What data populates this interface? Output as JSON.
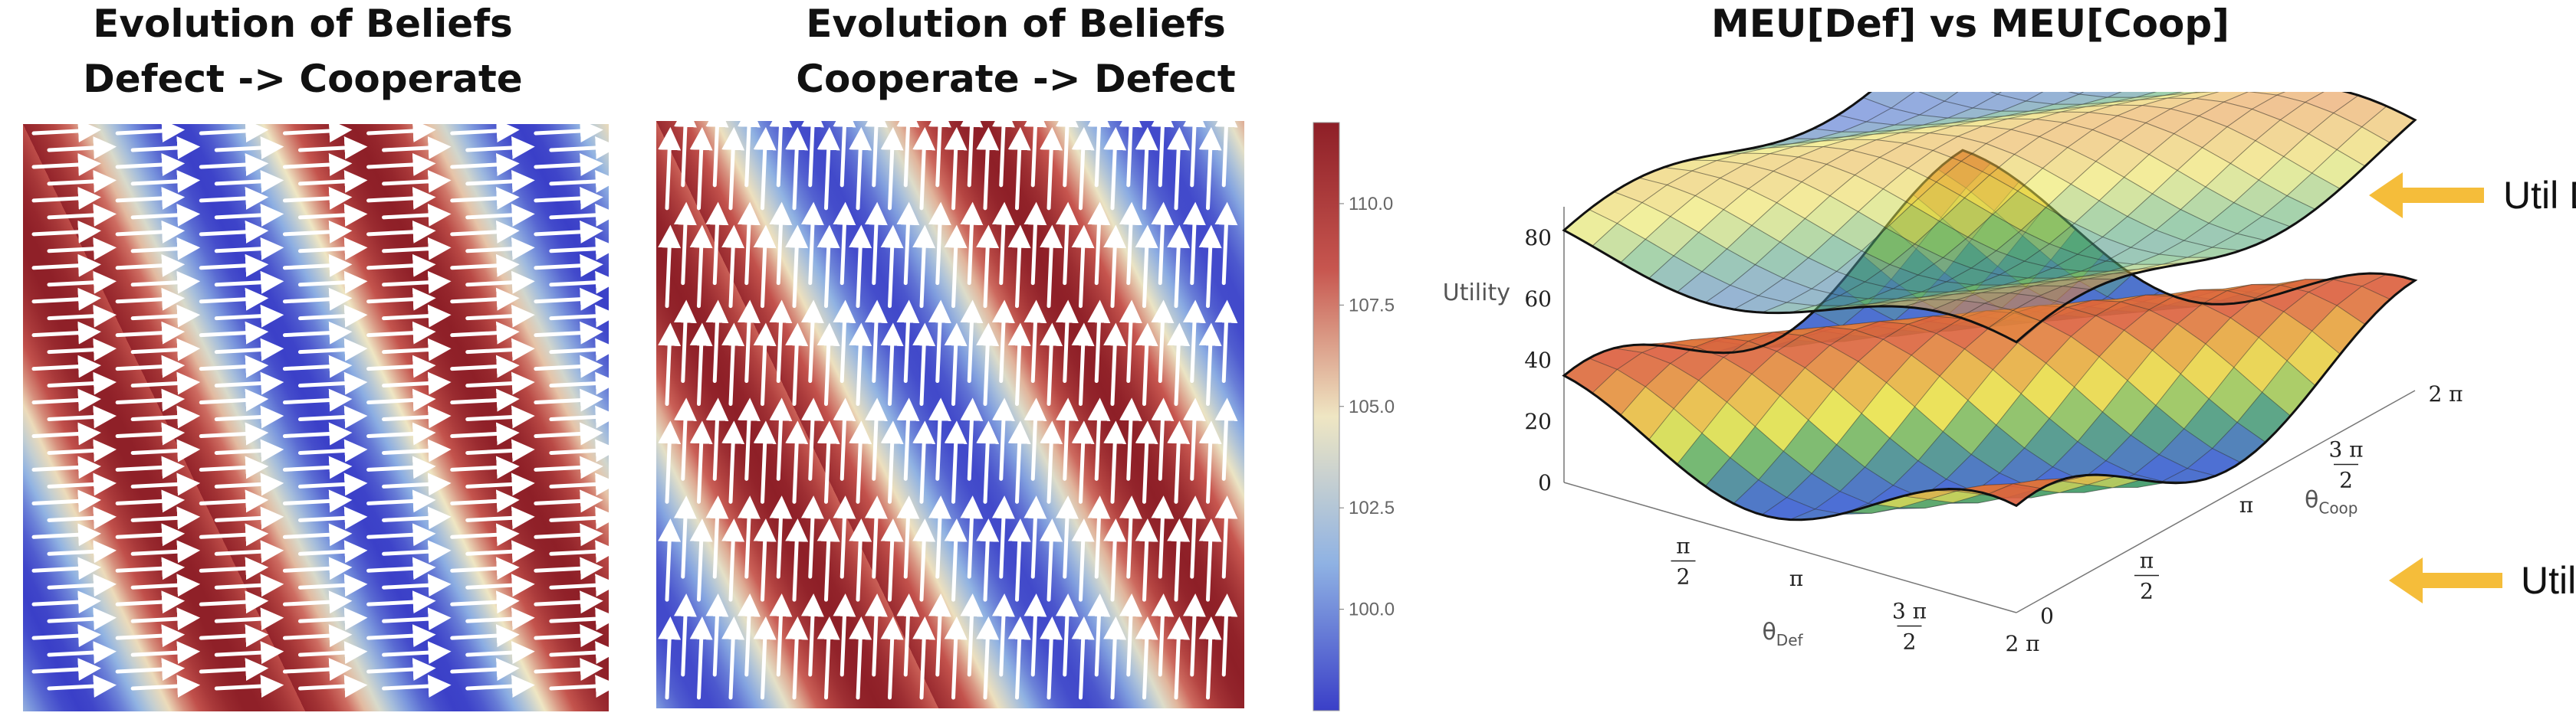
{
  "chart_data": [
    {
      "type": "heatmap",
      "title_line1": "Evolution of Beliefs",
      "title_line2": "Defect -> Cooperate",
      "field": "horizontal",
      "stream_direction": "right",
      "colormap": [
        "#3a3fc8",
        "#8fb2e3",
        "#efe6c3",
        "#c7564f",
        "#8e1f27"
      ]
    },
    {
      "type": "heatmap",
      "title_line1": "Evolution of Beliefs",
      "title_line2": "Cooperate -> Defect",
      "field": "vertical",
      "stream_direction": "up",
      "colormap": [
        "#3a3fc8",
        "#8fb2e3",
        "#efe6c3",
        "#c7564f",
        "#8e1f27"
      ]
    },
    {
      "type": "colorbar",
      "range": [
        97.5,
        112.0
      ],
      "ticks": [
        100.0,
        102.5,
        105.0,
        107.5,
        110.0
      ],
      "tick_labels": [
        "100.0",
        "102.5",
        "105.0",
        "107.5",
        "110.0"
      ]
    },
    {
      "type": "surface",
      "title": "MEU[Def] vs MEU[Coop]",
      "z_axis_label": "Utility",
      "z_ticks": [
        "0",
        "20",
        "40",
        "60",
        "80"
      ],
      "x_axis_label": "θ",
      "x_axis_subscript": "Def",
      "x_ticks": [
        {
          "num": "π",
          "den": "2"
        },
        {
          "num": "π",
          "den": ""
        },
        {
          "num": "3 π",
          "den": "2"
        },
        {
          "num": "2 π",
          "den": ""
        }
      ],
      "y_axis_label": "θ",
      "y_axis_subscript": "Coop",
      "y_ticks": [
        {
          "num": "0",
          "den": ""
        },
        {
          "num": "π",
          "den": "2"
        },
        {
          "num": "π",
          "den": ""
        },
        {
          "num": "3 π",
          "den": "2"
        },
        {
          "num": "2 π",
          "den": ""
        }
      ],
      "x_range": [
        0,
        6.283
      ],
      "y_range": [
        0,
        6.283
      ],
      "series": [
        {
          "name": "Util Defect",
          "coloring": "translucent rainbow"
        },
        {
          "name": "Util Cooperate",
          "coloring": "rainbow"
        }
      ],
      "annotations": [
        "Util Defect",
        "Util Cooperate"
      ],
      "arrow_color": "#f5bd3a"
    }
  ]
}
